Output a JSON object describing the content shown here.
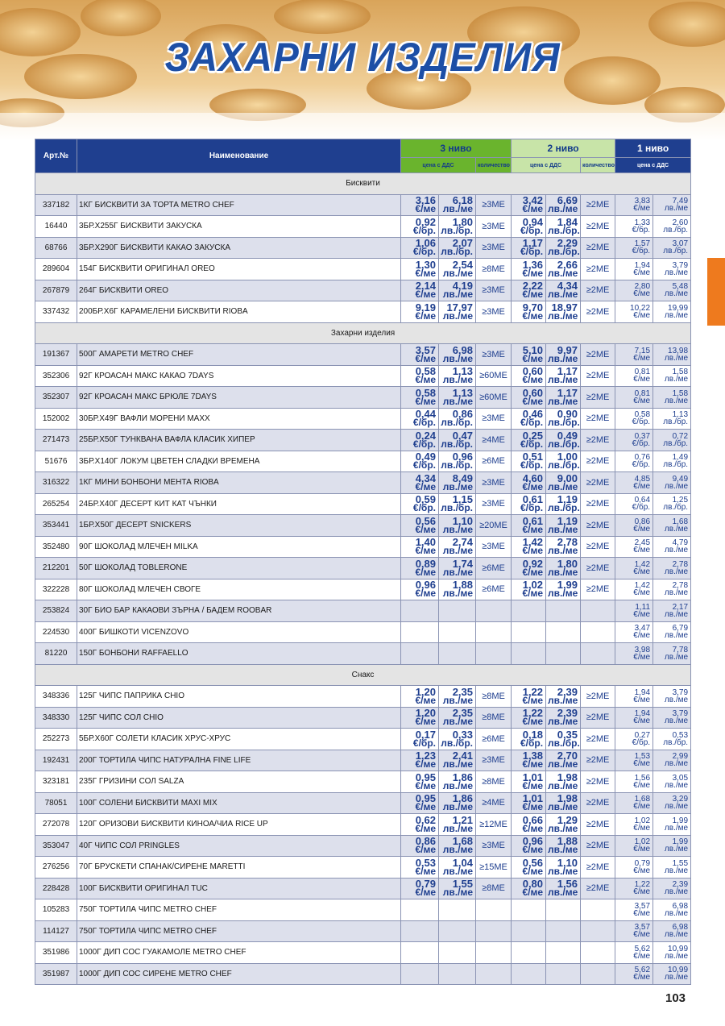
{
  "header": {
    "title": "ЗАХАРНИ ИЗДЕЛИЯ"
  },
  "page_number": "103",
  "table": {
    "columns": {
      "art": "Арт.№",
      "name": "Наименование"
    },
    "levels": [
      {
        "name": "3 ниво",
        "price_label": "цена с ДДС",
        "qty_label": "количество"
      },
      {
        "name": "2 ниво",
        "price_label": "цена с ДДС",
        "qty_label": "количество"
      },
      {
        "name": "1 ниво",
        "price_label": "цена с ДДС"
      }
    ],
    "sections": [
      {
        "title": "Бисквити",
        "rows": [
          [
            "337182",
            "1КГ БИСКВИТИ ЗА ТОРТА METRO CHEF",
            "3,16",
            "€/ме",
            "6,18",
            "лв./ме",
            "≥3МЕ",
            "3,42",
            "€/ме",
            "6,69",
            "лв./ме",
            "≥2МЕ",
            "3,83",
            "€/ме",
            "7,49",
            "лв./ме"
          ],
          [
            "16440",
            "3БР.Х255Г БИСКВИТИ ЗАКУСКА",
            "0,92",
            "€/бр.",
            "1,80",
            "лв./бр.",
            "≥3МЕ",
            "0,94",
            "€/бр.",
            "1,84",
            "лв./бр.",
            "≥2МЕ",
            "1,33",
            "€/бр.",
            "2,60",
            "лв./бр."
          ],
          [
            "68766",
            "3БР.Х290Г БИСКВИТИ КАКАО ЗАКУСКА",
            "1,06",
            "€/бр.",
            "2,07",
            "лв./бр.",
            "≥3МЕ",
            "1,17",
            "€/бр.",
            "2,29",
            "лв./бр.",
            "≥2МЕ",
            "1,57",
            "€/бр.",
            "3,07",
            "лв./бр."
          ],
          [
            "289604",
            "154Г БИСКВИТИ ОРИГИНАЛ OREO",
            "1,30",
            "€/ме",
            "2,54",
            "лв./ме",
            "≥8МЕ",
            "1,36",
            "€/ме",
            "2,66",
            "лв./ме",
            "≥2МЕ",
            "1,94",
            "€/ме",
            "3,79",
            "лв./ме"
          ],
          [
            "267879",
            "264Г БИСКВИТИ OREO",
            "2,14",
            "€/ме",
            "4,19",
            "лв./ме",
            "≥3МЕ",
            "2,22",
            "€/ме",
            "4,34",
            "лв./ме",
            "≥2МЕ",
            "2,80",
            "€/ме",
            "5,48",
            "лв./ме"
          ],
          [
            "337432",
            "200БР.Х6Г КАРАМЕЛЕНИ БИСКВИТИ RIOBA",
            "9,19",
            "€/ме",
            "17,97",
            "лв./ме",
            "≥3МЕ",
            "9,70",
            "€/ме",
            "18,97",
            "лв./ме",
            "≥2МЕ",
            "10,22",
            "€/ме",
            "19,99",
            "лв./ме"
          ]
        ]
      },
      {
        "title": "Захарни изделия",
        "rows": [
          [
            "191367",
            "500Г АМАРЕТИ METRO CHEF",
            "3,57",
            "€/ме",
            "6,98",
            "лв./ме",
            "≥3МЕ",
            "5,10",
            "€/ме",
            "9,97",
            "лв./ме",
            "≥2МЕ",
            "7,15",
            "€/ме",
            "13,98",
            "лв./ме"
          ],
          [
            "352306",
            "92Г КРОАСАН МАКС КАКАО 7DAYS",
            "0,58",
            "€/ме",
            "1,13",
            "лв./ме",
            "≥60МЕ",
            "0,60",
            "€/ме",
            "1,17",
            "лв./ме",
            "≥2МЕ",
            "0,81",
            "€/ме",
            "1,58",
            "лв./ме"
          ],
          [
            "352307",
            "92Г КРОАСАН МАКС БРЮЛЕ 7DAYS",
            "0,58",
            "€/ме",
            "1,13",
            "лв./ме",
            "≥60МЕ",
            "0,60",
            "€/ме",
            "1,17",
            "лв./ме",
            "≥2МЕ",
            "0,81",
            "€/ме",
            "1,58",
            "лв./ме"
          ],
          [
            "152002",
            "30БР.Х49Г ВАФЛИ МОРЕНИ MAXX",
            "0,44",
            "€/бр.",
            "0,86",
            "лв./бр.",
            "≥3МЕ",
            "0,46",
            "€/бр.",
            "0,90",
            "лв./бр.",
            "≥2МЕ",
            "0,58",
            "€/бр.",
            "1,13",
            "лв./бр."
          ],
          [
            "271473",
            "25БР.Х50Г ТУНКВАНА ВАФЛА КЛАСИК ХИПЕР",
            "0,24",
            "€/бр.",
            "0,47",
            "лв./бр.",
            "≥4МЕ",
            "0,25",
            "€/бр.",
            "0,49",
            "лв./бр.",
            "≥2МЕ",
            "0,37",
            "€/бр.",
            "0,72",
            "лв./бр."
          ],
          [
            "51676",
            "3БР.Х140Г ЛОКУМ ЦВЕТЕН СЛАДКИ ВРЕМЕНА",
            "0,49",
            "€/бр.",
            "0,96",
            "лв./бр.",
            "≥6МЕ",
            "0,51",
            "€/бр.",
            "1,00",
            "лв./бр.",
            "≥2МЕ",
            "0,76",
            "€/бр.",
            "1,49",
            "лв./бр."
          ],
          [
            "316322",
            "1КГ МИНИ БОНБОНИ МЕНТА RIOBA",
            "4,34",
            "€/ме",
            "8,49",
            "лв./ме",
            "≥3МЕ",
            "4,60",
            "€/ме",
            "9,00",
            "лв./ме",
            "≥2МЕ",
            "4,85",
            "€/ме",
            "9,49",
            "лв./ме"
          ],
          [
            "265254",
            "24БР.Х40Г ДЕСЕРТ КИТ КАТ ЧЪНКИ",
            "0,59",
            "€/бр.",
            "1,15",
            "лв./бр.",
            "≥3МЕ",
            "0,61",
            "€/бр.",
            "1,19",
            "лв./бр.",
            "≥2МЕ",
            "0,64",
            "€/бр.",
            "1,25",
            "лв./бр."
          ],
          [
            "353441",
            "1БР.Х50Г ДЕСЕРТ SNICKERS",
            "0,56",
            "€/ме",
            "1,10",
            "лв./ме",
            "≥20МЕ",
            "0,61",
            "€/ме",
            "1,19",
            "лв./ме",
            "≥2МЕ",
            "0,86",
            "€/ме",
            "1,68",
            "лв./ме"
          ],
          [
            "352480",
            "90Г ШОКОЛАД МЛЕЧЕН MILKA",
            "1,40",
            "€/ме",
            "2,74",
            "лв./ме",
            "≥3МЕ",
            "1,42",
            "€/ме",
            "2,78",
            "лв./ме",
            "≥2МЕ",
            "2,45",
            "€/ме",
            "4,79",
            "лв./ме"
          ],
          [
            "212201",
            "50Г ШОКОЛАД TOBLERONE",
            "0,89",
            "€/ме",
            "1,74",
            "лв./ме",
            "≥6МЕ",
            "0,92",
            "€/ме",
            "1,80",
            "лв./ме",
            "≥2МЕ",
            "1,42",
            "€/ме",
            "2,78",
            "лв./ме"
          ],
          [
            "322228",
            "80Г ШОКОЛАД МЛЕЧЕН СВОГЕ",
            "0,96",
            "€/ме",
            "1,88",
            "лв./ме",
            "≥6МЕ",
            "1,02",
            "€/ме",
            "1,99",
            "лв./ме",
            "≥2МЕ",
            "1,42",
            "€/ме",
            "2,78",
            "лв./ме"
          ],
          [
            "253824",
            "30Г БИО БАР КАКАОВИ ЗЪРНА / БАДЕМ ROOBAR",
            null,
            null,
            null,
            null,
            null,
            null,
            null,
            null,
            null,
            null,
            "1,11",
            "€/ме",
            "2,17",
            "лв./ме"
          ],
          [
            "224530",
            "400Г БИШКОТИ VICENZOVO",
            null,
            null,
            null,
            null,
            null,
            null,
            null,
            null,
            null,
            null,
            "3,47",
            "€/ме",
            "6,79",
            "лв./ме"
          ],
          [
            "81220",
            "150Г БОНБОНИ RAFFAELLO",
            null,
            null,
            null,
            null,
            null,
            null,
            null,
            null,
            null,
            null,
            "3,98",
            "€/ме",
            "7,78",
            "лв./ме"
          ]
        ]
      },
      {
        "title": "Снакс",
        "rows": [
          [
            "348336",
            "125Г ЧИПС ПАПРИКА CHIO",
            "1,20",
            "€/ме",
            "2,35",
            "лв./ме",
            "≥8МЕ",
            "1,22",
            "€/ме",
            "2,39",
            "лв./ме",
            "≥2МЕ",
            "1,94",
            "€/ме",
            "3,79",
            "лв./ме"
          ],
          [
            "348330",
            "125Г ЧИПС СОЛ CHIO",
            "1,20",
            "€/ме",
            "2,35",
            "лв./ме",
            "≥8МЕ",
            "1,22",
            "€/ме",
            "2,39",
            "лв./ме",
            "≥2МЕ",
            "1,94",
            "€/ме",
            "3,79",
            "лв./ме"
          ],
          [
            "252273",
            "5БР.Х60Г СОЛЕТИ КЛАСИК ХРУС-ХРУС",
            "0,17",
            "€/бр.",
            "0,33",
            "лв./бр.",
            "≥6МЕ",
            "0,18",
            "€/бр.",
            "0,35",
            "лв./бр.",
            "≥2МЕ",
            "0,27",
            "€/бр.",
            "0,53",
            "лв./бр."
          ],
          [
            "192431",
            "200Г ТОРТИЛА ЧИПС НАТУРАЛНА FINE LIFE",
            "1,23",
            "€/ме",
            "2,41",
            "лв./ме",
            "≥3МЕ",
            "1,38",
            "€/ме",
            "2,70",
            "лв./ме",
            "≥2МЕ",
            "1,53",
            "€/ме",
            "2,99",
            "лв./ме"
          ],
          [
            "323181",
            "235Г ГРИЗИНИ СОЛ SALZA",
            "0,95",
            "€/ме",
            "1,86",
            "лв./ме",
            "≥8МЕ",
            "1,01",
            "€/ме",
            "1,98",
            "лв./ме",
            "≥2МЕ",
            "1,56",
            "€/ме",
            "3,05",
            "лв./ме"
          ],
          [
            "78051",
            "100Г СОЛЕНИ БИСКВИТИ MAXI MIX",
            "0,95",
            "€/ме",
            "1,86",
            "лв./ме",
            "≥4МЕ",
            "1,01",
            "€/ме",
            "1,98",
            "лв./ме",
            "≥2МЕ",
            "1,68",
            "€/ме",
            "3,29",
            "лв./ме"
          ],
          [
            "272078",
            "120Г ОРИЗОВИ БИСКВИТИ КИНОА/ЧИА RICE UP",
            "0,62",
            "€/ме",
            "1,21",
            "лв./ме",
            "≥12МЕ",
            "0,66",
            "€/ме",
            "1,29",
            "лв./ме",
            "≥2МЕ",
            "1,02",
            "€/ме",
            "1,99",
            "лв./ме"
          ],
          [
            "353047",
            "40Г ЧИПС СОЛ PRINGLES",
            "0,86",
            "€/ме",
            "1,68",
            "лв./ме",
            "≥3МЕ",
            "0,96",
            "€/ме",
            "1,88",
            "лв./ме",
            "≥2МЕ",
            "1,02",
            "€/ме",
            "1,99",
            "лв./ме"
          ],
          [
            "276256",
            "70Г БРУСКЕТИ СПАНАК/СИРЕНЕ MARETTI",
            "0,53",
            "€/ме",
            "1,04",
            "лв./ме",
            "≥15МЕ",
            "0,56",
            "€/ме",
            "1,10",
            "лв./ме",
            "≥2МЕ",
            "0,79",
            "€/ме",
            "1,55",
            "лв./ме"
          ],
          [
            "228428",
            "100Г БИСКВИТИ ОРИГИНАЛ TUC",
            "0,79",
            "€/ме",
            "1,55",
            "лв./ме",
            "≥8МЕ",
            "0,80",
            "€/ме",
            "1,56",
            "лв./ме",
            "≥2МЕ",
            "1,22",
            "€/ме",
            "2,39",
            "лв./ме"
          ],
          [
            "105283",
            "750Г ТОРТИЛА ЧИПС METRO CHEF",
            null,
            null,
            null,
            null,
            null,
            null,
            null,
            null,
            null,
            null,
            "3,57",
            "€/ме",
            "6,98",
            "лв./ме"
          ],
          [
            "114127",
            "750Г ТОРТИЛА ЧИПС METRO CHEF",
            null,
            null,
            null,
            null,
            null,
            null,
            null,
            null,
            null,
            null,
            "3,57",
            "€/ме",
            "6,98",
            "лв./ме"
          ],
          [
            "351986",
            "1000Г ДИП СОС ГУАКАМОЛЕ METRO CHEF",
            null,
            null,
            null,
            null,
            null,
            null,
            null,
            null,
            null,
            null,
            "5,62",
            "€/ме",
            "10,99",
            "лв./ме"
          ],
          [
            "351987",
            "1000Г ДИП СОС СИРЕНЕ METRO CHEF",
            null,
            null,
            null,
            null,
            null,
            null,
            null,
            null,
            null,
            null,
            "5,62",
            "€/ме",
            "10,99",
            "лв./ме"
          ]
        ]
      }
    ]
  }
}
